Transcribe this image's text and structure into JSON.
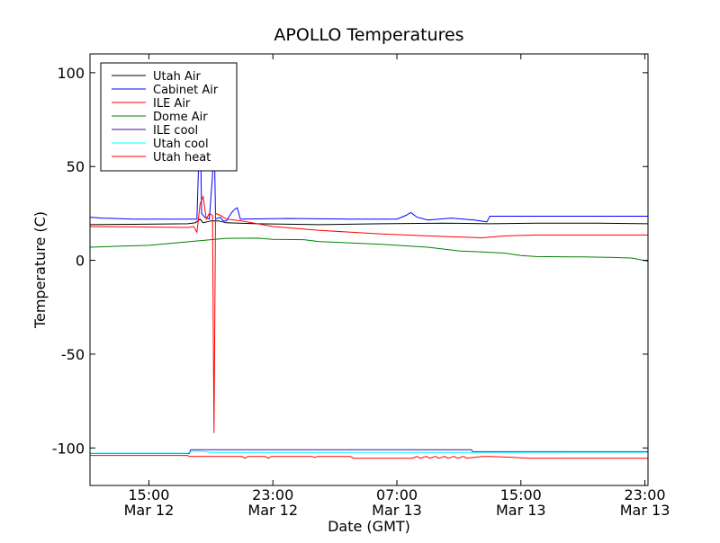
{
  "chart_data": {
    "type": "line",
    "title": "APOLLO Temperatures",
    "xlabel": "Date (GMT)",
    "ylabel": "Temperature (C)",
    "xlim": [
      11.2,
      47.2
    ],
    "ylim": [
      -120,
      110
    ],
    "grid": false,
    "legend_position": "top-left",
    "x_ticks": [
      {
        "x": 15,
        "time": "15:00",
        "date": "Mar 12"
      },
      {
        "x": 23,
        "time": "23:00",
        "date": "Mar 12"
      },
      {
        "x": 31,
        "time": "07:00",
        "date": "Mar 13"
      },
      {
        "x": 39,
        "time": "15:00",
        "date": "Mar 13"
      },
      {
        "x": 47,
        "time": "23:00",
        "date": "Mar 13"
      }
    ],
    "y_ticks": [
      {
        "y": 100,
        "label": "100"
      },
      {
        "y": 50,
        "label": "50"
      },
      {
        "y": 0,
        "label": "0"
      },
      {
        "y": -50,
        "label": "-50"
      },
      {
        "y": -100,
        "label": "-100"
      }
    ],
    "series": [
      {
        "name": "Utah Air",
        "color": "#000000",
        "points": [
          [
            11.2,
            19
          ],
          [
            14,
            19.2
          ],
          [
            17.5,
            19.5
          ],
          [
            18,
            20
          ],
          [
            18.3,
            22
          ],
          [
            18.5,
            20
          ],
          [
            19,
            21
          ],
          [
            19.5,
            21
          ],
          [
            20,
            20
          ],
          [
            22,
            19.5
          ],
          [
            26,
            19
          ],
          [
            30,
            19.5
          ],
          [
            34,
            19.8
          ],
          [
            37,
            19.5
          ],
          [
            40,
            19.8
          ],
          [
            44,
            19.8
          ],
          [
            47.2,
            19.5
          ]
        ]
      },
      {
        "name": "Cabinet Air",
        "color": "#0000ff",
        "points": [
          [
            11.2,
            23
          ],
          [
            12,
            22.5
          ],
          [
            14,
            22
          ],
          [
            17,
            22
          ],
          [
            17.8,
            22
          ],
          [
            18.1,
            22
          ],
          [
            18.2,
            50
          ],
          [
            18.3,
            80
          ],
          [
            18.4,
            25
          ],
          [
            18.6,
            23
          ],
          [
            18.9,
            22
          ],
          [
            19.1,
            45
          ],
          [
            19.2,
            75
          ],
          [
            19.3,
            22
          ],
          [
            19.6,
            23
          ],
          [
            19.8,
            21
          ],
          [
            20,
            21
          ],
          [
            20.3,
            25
          ],
          [
            20.5,
            27
          ],
          [
            20.7,
            28
          ],
          [
            20.9,
            22
          ],
          [
            24,
            22.3
          ],
          [
            28,
            22
          ],
          [
            31,
            22
          ],
          [
            31.6,
            24
          ],
          [
            31.9,
            25.5
          ],
          [
            32.3,
            23
          ],
          [
            33,
            21.5
          ],
          [
            34.5,
            22.5
          ],
          [
            36,
            21.5
          ],
          [
            36.8,
            20.5
          ],
          [
            37,
            23.5
          ],
          [
            40,
            23.5
          ],
          [
            44,
            23.5
          ],
          [
            47.2,
            23.5
          ]
        ]
      },
      {
        "name": "ILE Air",
        "color": "#ff0000",
        "points": [
          [
            11.2,
            18
          ],
          [
            14,
            17.8
          ],
          [
            17.5,
            17.5
          ],
          [
            17.9,
            18
          ],
          [
            18.1,
            15
          ],
          [
            18.3,
            30
          ],
          [
            18.5,
            34
          ],
          [
            18.7,
            22
          ],
          [
            18.9,
            25
          ],
          [
            19.1,
            24
          ],
          [
            19.2,
            -92
          ],
          [
            19.3,
            25
          ],
          [
            19.6,
            24
          ],
          [
            20,
            22
          ],
          [
            21,
            21
          ],
          [
            23,
            18
          ],
          [
            26,
            16
          ],
          [
            30,
            14
          ],
          [
            33,
            13
          ],
          [
            36.5,
            12
          ],
          [
            38,
            13
          ],
          [
            40,
            13.5
          ],
          [
            44,
            13.5
          ],
          [
            47.2,
            13.5
          ]
        ]
      },
      {
        "name": "Dome Air",
        "color": "#008000",
        "points": [
          [
            11.2,
            7
          ],
          [
            13,
            7.5
          ],
          [
            15,
            8
          ],
          [
            17,
            9.5
          ],
          [
            19,
            11
          ],
          [
            20,
            11.7
          ],
          [
            22,
            11.8
          ],
          [
            23,
            11.2
          ],
          [
            25,
            11
          ],
          [
            26,
            10
          ],
          [
            30,
            8.5
          ],
          [
            33,
            7
          ],
          [
            35,
            5
          ],
          [
            36.5,
            4.5
          ],
          [
            38,
            3.8
          ],
          [
            39,
            2.5
          ],
          [
            40,
            2
          ],
          [
            43,
            1.8
          ],
          [
            45,
            1.5
          ],
          [
            46.2,
            1.2
          ],
          [
            47.2,
            -0.5
          ]
        ]
      },
      {
        "name": "ILE cool",
        "color": "#3a0fa8",
        "points": [
          [
            11.2,
            -103
          ],
          [
            17.6,
            -103
          ],
          [
            17.7,
            -101
          ],
          [
            24,
            -101
          ],
          [
            35.8,
            -101
          ],
          [
            35.9,
            -102
          ],
          [
            47.2,
            -102
          ]
        ]
      },
      {
        "name": "Utah cool",
        "color": "#00ffff",
        "points": [
          [
            11.2,
            -102.8
          ],
          [
            17.5,
            -102.8
          ],
          [
            17.8,
            -101.8
          ],
          [
            18.4,
            -101.8
          ],
          [
            19,
            -102.4
          ],
          [
            27,
            -102.4
          ],
          [
            47.2,
            -102.3
          ]
        ]
      },
      {
        "name": "Utah heat",
        "color": "#ff0000",
        "points": [
          [
            11.2,
            -104
          ],
          [
            17.5,
            -104
          ],
          [
            17.6,
            -104.5
          ],
          [
            21,
            -104.5
          ],
          [
            21.2,
            -105.5
          ],
          [
            21.4,
            -104.5
          ],
          [
            22.5,
            -104.5
          ],
          [
            22.7,
            -105.5
          ],
          [
            22.9,
            -104.5
          ],
          [
            25,
            -104.5
          ],
          [
            25.5,
            -104.5
          ],
          [
            25.7,
            -105
          ],
          [
            25.9,
            -104.5
          ],
          [
            28,
            -104.5
          ],
          [
            28.2,
            -105.5
          ],
          [
            32,
            -105.5
          ],
          [
            32.3,
            -104.5
          ],
          [
            32.5,
            -105.5
          ],
          [
            32.9,
            -104.5
          ],
          [
            33.1,
            -105.5
          ],
          [
            33.5,
            -104.5
          ],
          [
            33.7,
            -105.5
          ],
          [
            34.1,
            -104.5
          ],
          [
            34.3,
            -105.5
          ],
          [
            34.7,
            -104.5
          ],
          [
            34.9,
            -105.5
          ],
          [
            35.3,
            -104.5
          ],
          [
            35.5,
            -105.5
          ],
          [
            36.5,
            -104.5
          ],
          [
            37,
            -104.5
          ],
          [
            38.5,
            -105
          ],
          [
            39.5,
            -105.5
          ],
          [
            47.2,
            -105.5
          ]
        ]
      }
    ]
  }
}
